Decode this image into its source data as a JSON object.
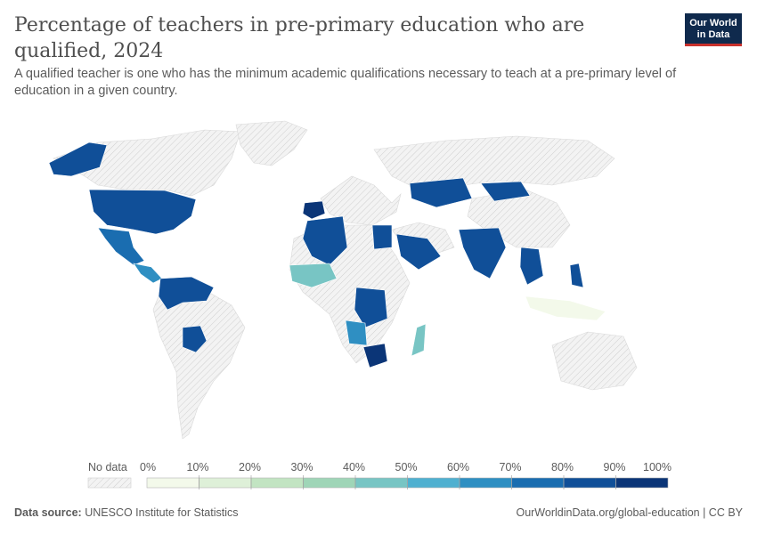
{
  "header": {
    "title": "Percentage of teachers in pre-primary education who are qualified, 2024",
    "subtitle": "A qualified teacher is one who has the minimum academic qualifications necessary to teach at a pre-primary level of education in a given country."
  },
  "logo": {
    "line1": "Our World",
    "line2": "in Data"
  },
  "legend": {
    "no_data_label": "No data",
    "ticks": [
      "0%",
      "10%",
      "20%",
      "30%",
      "40%",
      "50%",
      "60%",
      "70%",
      "80%",
      "90%",
      "100%"
    ],
    "colors": [
      "#f3f9ea",
      "#def0d8",
      "#c2e4c2",
      "#9fd5b7",
      "#78c5c4",
      "#4fb0d0",
      "#2f8fc2",
      "#1a6db0",
      "#104f98",
      "#0b3577"
    ]
  },
  "footer": {
    "source_label": "Data source:",
    "source_value": "UNESCO Institute for Statistics",
    "url": "OurWorldinData.org/global-education | CC BY"
  },
  "colors": {
    "no_data_fill": "#ececec",
    "no_data_hatch": "#d0d0d0",
    "border": "#ffffff"
  }
}
